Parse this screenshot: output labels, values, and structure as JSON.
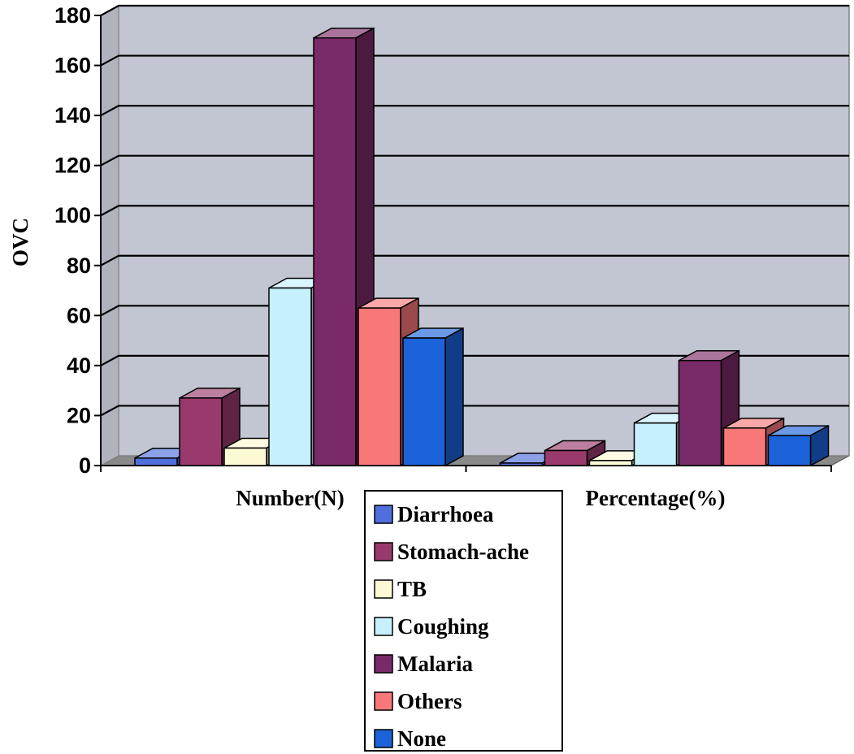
{
  "chart_data": {
    "type": "bar",
    "style": "3d-clustered-column",
    "title": "",
    "xlabel": "",
    "ylabel": "OVC",
    "ylim": [
      0,
      180
    ],
    "yticks": [
      0,
      20,
      40,
      60,
      80,
      100,
      120,
      140,
      160,
      180
    ],
    "grid": true,
    "legend_position": "bottom",
    "categories": [
      "Number(N)",
      "Percentage(%)"
    ],
    "series": [
      {
        "name": "Diarrhoea",
        "color": "#4f6fdc",
        "values": [
          3,
          1
        ]
      },
      {
        "name": "Stomach-ache",
        "color": "#9a3a6c",
        "values": [
          27,
          6
        ]
      },
      {
        "name": "TB",
        "color": "#fcfad4",
        "values": [
          7,
          2
        ]
      },
      {
        "name": "Coughing",
        "color": "#c6f0fc",
        "values": [
          71,
          17
        ]
      },
      {
        "name": "Malaria",
        "color": "#7a2a68",
        "values": [
          171,
          42
        ]
      },
      {
        "name": "Others",
        "color": "#f8787a",
        "values": [
          63,
          15
        ]
      },
      {
        "name": "None",
        "color": "#1c62d8",
        "values": [
          51,
          12
        ]
      }
    ]
  }
}
